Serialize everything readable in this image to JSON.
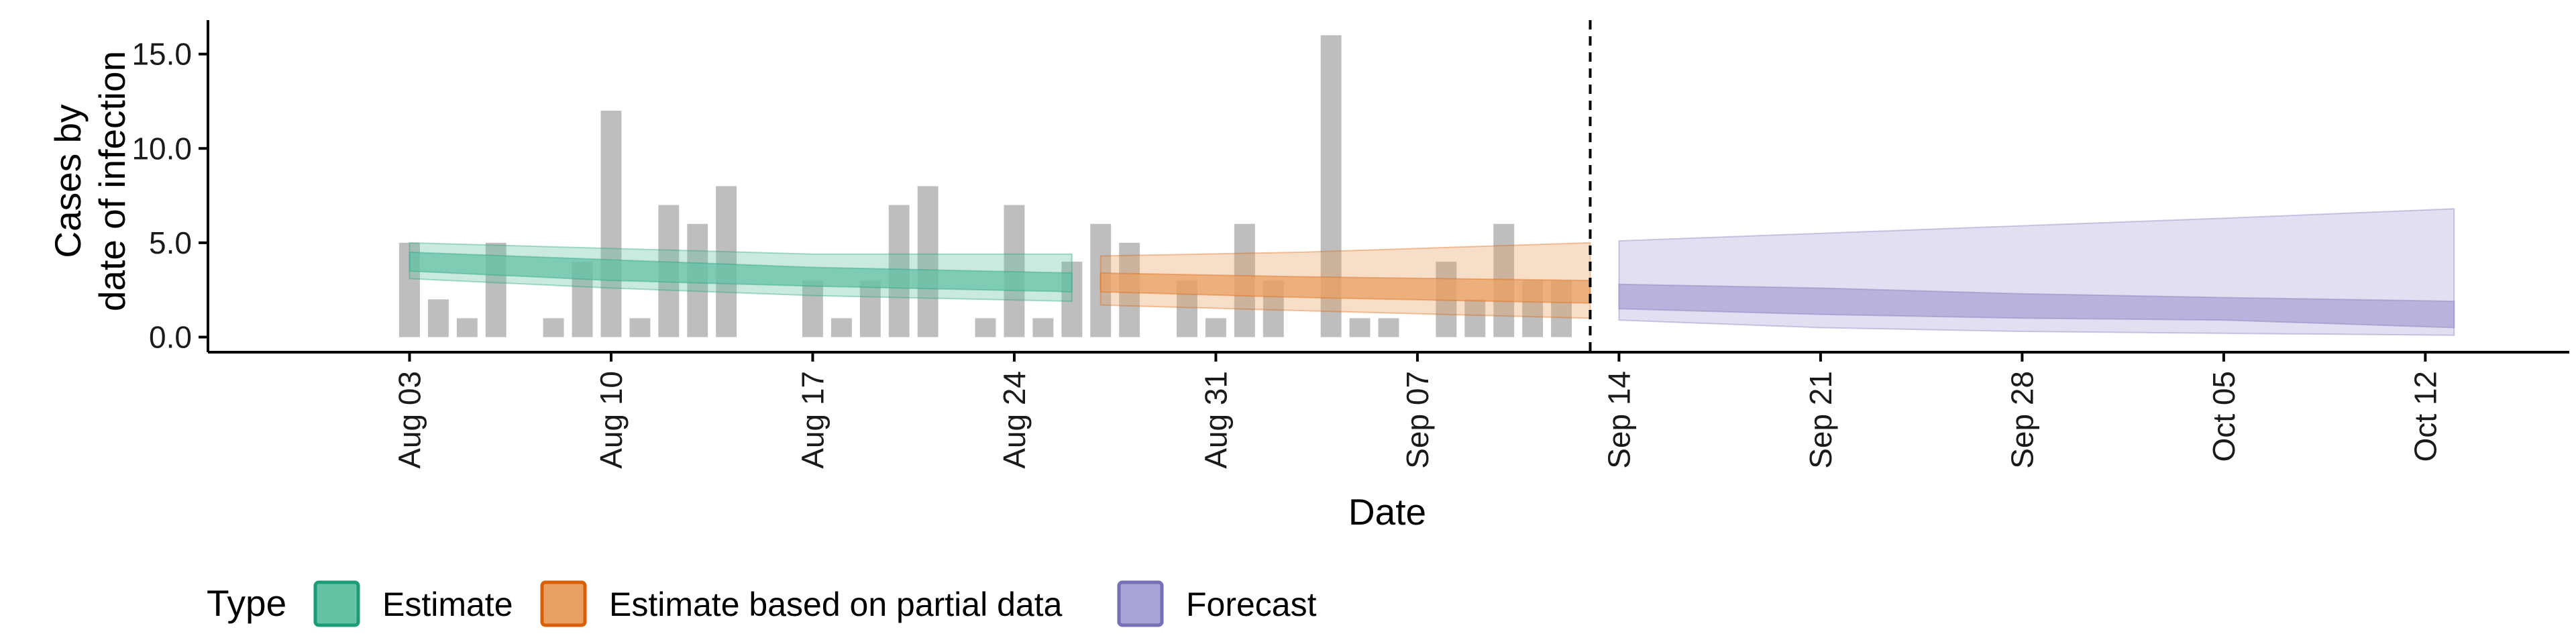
{
  "chart_data": {
    "type": "bar",
    "xlabel": "Date",
    "ylabel_lines": [
      "Cases by",
      "date of infection"
    ],
    "ylim": [
      -0.8,
      16.8
    ],
    "xlim": [
      "2023-07-27",
      "2023-10-17"
    ],
    "y_ticks": [
      0,
      5,
      10,
      15
    ],
    "y_tick_labels": [
      "0.0",
      "5.0",
      "10.0",
      "15.0"
    ],
    "x_ticks": [
      "2023-08-03",
      "2023-08-10",
      "2023-08-17",
      "2023-08-24",
      "2023-08-31",
      "2023-09-07",
      "2023-09-14",
      "2023-09-21",
      "2023-09-28",
      "2023-10-05",
      "2023-10-12"
    ],
    "x_tick_labels": [
      "Aug 03",
      "Aug 10",
      "Aug 17",
      "Aug 24",
      "Aug 31",
      "Sep 07",
      "Sep 14",
      "Sep 21",
      "Sep 28",
      "Oct 05",
      "Oct 12"
    ],
    "forecast_start": "2023-09-13",
    "grid": false,
    "legend": {
      "title": "Type",
      "position": "bottom-left",
      "entries": [
        {
          "label": "Estimate",
          "fill": "#66C2A5",
          "stroke": "#1B9E77"
        },
        {
          "label": "Estimate based on partial data",
          "fill": "#E9A063",
          "stroke": "#D95F02"
        },
        {
          "label": "Forecast",
          "fill": "#A9A4D6",
          "stroke": "#7570B3"
        }
      ]
    },
    "bar_color": "#BEBEBE",
    "bars": {
      "dates": [
        "2023-08-03",
        "2023-08-04",
        "2023-08-05",
        "2023-08-06",
        "2023-08-07",
        "2023-08-08",
        "2023-08-09",
        "2023-08-10",
        "2023-08-11",
        "2023-08-12",
        "2023-08-13",
        "2023-08-14",
        "2023-08-15",
        "2023-08-16",
        "2023-08-17",
        "2023-08-18",
        "2023-08-19",
        "2023-08-20",
        "2023-08-21",
        "2023-08-22",
        "2023-08-23",
        "2023-08-24",
        "2023-08-25",
        "2023-08-26",
        "2023-08-27",
        "2023-08-28",
        "2023-08-29",
        "2023-08-30",
        "2023-08-31",
        "2023-09-01",
        "2023-09-02",
        "2023-09-03",
        "2023-09-04",
        "2023-09-05",
        "2023-09-06",
        "2023-09-07",
        "2023-09-08",
        "2023-09-09",
        "2023-09-10",
        "2023-09-11",
        "2023-09-12"
      ],
      "values": [
        5,
        2,
        1,
        5,
        0,
        1,
        4,
        12,
        1,
        7,
        6,
        8,
        0,
        0,
        3,
        1,
        3,
        7,
        8,
        0,
        1,
        7,
        1,
        4,
        6,
        5,
        0,
        3,
        1,
        6,
        3,
        0,
        16,
        1,
        1,
        0,
        4,
        2,
        6,
        3,
        3
      ]
    },
    "series": [
      {
        "name": "Estimate",
        "color": "#1B9E77",
        "fill": "#66C2A5",
        "dates": [
          "2023-08-03",
          "2023-08-10",
          "2023-08-17",
          "2023-08-26"
        ],
        "median": [
          4.0,
          3.6,
          3.2,
          2.9
        ],
        "lower50": [
          3.5,
          3.0,
          2.7,
          2.4
        ],
        "upper50": [
          4.5,
          4.1,
          3.7,
          3.4
        ],
        "lower90": [
          3.1,
          2.6,
          2.2,
          1.9
        ],
        "upper90": [
          5.0,
          4.7,
          4.4,
          4.4
        ]
      },
      {
        "name": "Estimate based on partial data",
        "color": "#D95F02",
        "fill": "#E9A063",
        "dates": [
          "2023-08-27",
          "2023-09-03",
          "2023-09-13"
        ],
        "median": [
          2.9,
          2.7,
          2.4
        ],
        "lower50": [
          2.4,
          2.1,
          1.8
        ],
        "upper50": [
          3.4,
          3.2,
          3.0
        ],
        "lower90": [
          1.7,
          1.4,
          1.0
        ],
        "upper90": [
          4.3,
          4.5,
          5.0
        ]
      },
      {
        "name": "Forecast",
        "color": "#7570B3",
        "fill": "#A9A4D6",
        "dates": [
          "2023-09-14",
          "2023-09-21",
          "2023-09-28",
          "2023-10-05",
          "2023-10-13"
        ],
        "median": [
          2.1,
          1.8,
          1.6,
          1.5,
          1.2
        ],
        "lower50": [
          1.5,
          1.2,
          1.0,
          0.9,
          0.5
        ],
        "upper50": [
          2.8,
          2.6,
          2.3,
          2.1,
          1.9
        ],
        "lower90": [
          0.9,
          0.5,
          0.3,
          0.2,
          0.1
        ],
        "upper90": [
          5.1,
          5.5,
          5.9,
          6.3,
          6.8
        ]
      }
    ]
  }
}
